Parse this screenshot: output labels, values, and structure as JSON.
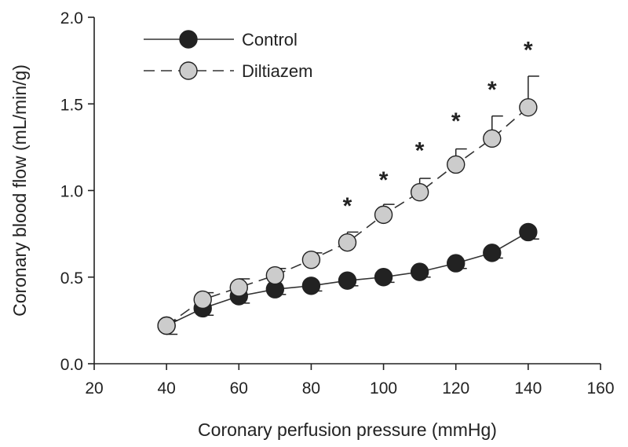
{
  "chart_data": {
    "type": "line",
    "title": "",
    "xlabel": "Coronary perfusion pressure (mmHg)",
    "ylabel": "Coronary blood flow (mL/min/g)",
    "xlim": [
      20,
      160
    ],
    "ylim": [
      0.0,
      2.0
    ],
    "xticks": [
      "20",
      "40",
      "60",
      "80",
      "100",
      "120",
      "140",
      "160"
    ],
    "yticks": [
      "0.0",
      "0.5",
      "1.0",
      "1.5",
      "2.0"
    ],
    "legend_position": "top-left",
    "series": [
      {
        "name": "Control",
        "line_style": "solid",
        "marker_fill": "#222222",
        "x": [
          40,
          50,
          60,
          70,
          80,
          90,
          100,
          110,
          120,
          130,
          140
        ],
        "y": [
          0.22,
          0.32,
          0.39,
          0.43,
          0.45,
          0.48,
          0.5,
          0.53,
          0.58,
          0.64,
          0.76
        ],
        "error_direction": "down",
        "error": [
          0.05,
          0.04,
          0.04,
          0.03,
          0.03,
          0.03,
          0.03,
          0.03,
          0.03,
          0.03,
          0.04
        ]
      },
      {
        "name": "Diltiazem",
        "line_style": "dashed",
        "marker_fill": "#cccccc",
        "x": [
          40,
          50,
          60,
          70,
          80,
          90,
          100,
          110,
          120,
          130,
          140
        ],
        "y": [
          0.22,
          0.37,
          0.44,
          0.51,
          0.6,
          0.7,
          0.86,
          0.99,
          1.15,
          1.3,
          1.48
        ],
        "error_direction": "up",
        "error": [
          0.03,
          0.04,
          0.05,
          0.04,
          0.04,
          0.06,
          0.06,
          0.08,
          0.09,
          0.13,
          0.18
        ]
      }
    ],
    "significance": {
      "symbol": "*",
      "x": [
        90,
        100,
        110,
        120,
        130,
        140
      ],
      "y": [
        0.93,
        1.08,
        1.25,
        1.42,
        1.6,
        1.83
      ]
    }
  }
}
